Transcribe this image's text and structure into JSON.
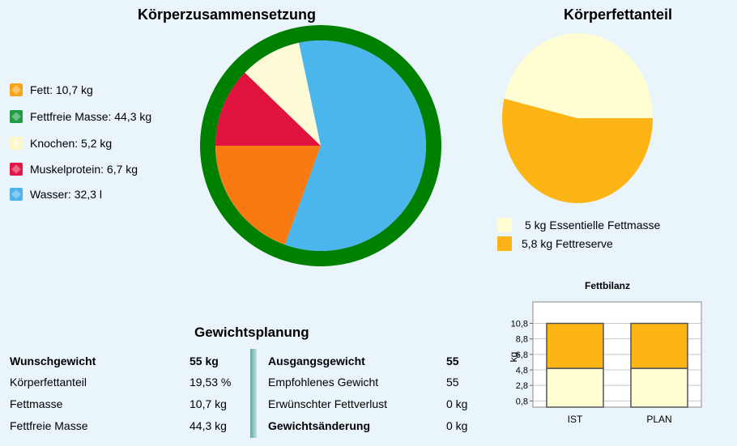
{
  "composition": {
    "title": "Körperzusammensetzung",
    "legend": [
      {
        "label": "Fett: 10,7 kg",
        "color": "#f7a61c"
      },
      {
        "label": "Fettfreie Masse: 44,3 kg",
        "color": "#1f9e46"
      },
      {
        "label": "Knochen: 5,2 kg",
        "color": "#fdf7c8"
      },
      {
        "label": "Muskelprotein: 6,7 kg",
        "color": "#e0184a"
      },
      {
        "label": "Wasser: 32,3 l",
        "color": "#4eb3e8"
      }
    ]
  },
  "bodyfat": {
    "title": "Körperfettanteil",
    "legend": [
      {
        "label": "5 kg Essentielle Fettmasse",
        "color": "#fefdd3"
      },
      {
        "label": "5,8 kg Fettreserve",
        "color": "#fcb316"
      }
    ]
  },
  "planning": {
    "title": "Gewichtsplanung",
    "left": [
      {
        "label": "Wunschgewicht",
        "value": "55 kg",
        "bold": true
      },
      {
        "label": "Körperfettanteil",
        "value": "19,53 %",
        "bold": false
      },
      {
        "label": "Fettmasse",
        "value": "10,7 kg",
        "bold": false
      },
      {
        "label": "Fettfreie Masse",
        "value": "44,3 kg",
        "bold": false
      }
    ],
    "right": [
      {
        "label": "Ausgangsgewicht",
        "value": "55",
        "bold": true
      },
      {
        "label": "Empfohlenes Gewicht",
        "value": "55",
        "bold": false
      },
      {
        "label": "Erwünschter Fettverlust",
        "value": "0 kg",
        "bold": false
      },
      {
        "label": "Gewichtsänderung",
        "value": "0 kg",
        "bold": true
      }
    ]
  },
  "chart_data": [
    {
      "type": "pie",
      "title": "Körperzusammensetzung",
      "inner": [
        {
          "name": "Fett",
          "value": 10.7,
          "color": "#fa7a12"
        },
        {
          "name": "Muskelprotein",
          "value": 6.7,
          "color": "#e0133f"
        },
        {
          "name": "Knochen",
          "value": 5.2,
          "color": "#fdfbd6"
        },
        {
          "name": "Wasser",
          "value": 32.3,
          "color": "#4ab6ec"
        }
      ],
      "outer": [
        {
          "name": "Fettfreie Masse",
          "value": 44.3,
          "color": "#008000"
        },
        {
          "name": "Fett",
          "value": 10.7,
          "color": "#008000"
        }
      ]
    },
    {
      "type": "pie",
      "title": "Körperfettanteil",
      "slices": [
        {
          "name": "Essentielle Fettmasse",
          "value": 5,
          "color": "#fffdd2"
        },
        {
          "name": "Fettreserve",
          "value": 5.8,
          "color": "#fdb415"
        }
      ]
    },
    {
      "type": "bar",
      "stacked": true,
      "title": "Fettbilanz",
      "ylabel": "kg",
      "categories": [
        "IST",
        "PLAN"
      ],
      "yticks": [
        "0,8",
        "2,8",
        "4,8",
        "6,8",
        "8,8",
        "10,8"
      ],
      "ylim": [
        0,
        12
      ],
      "series": [
        {
          "name": "Essentielle Fettmasse",
          "values": [
            5,
            5
          ],
          "color": "#fffdd2"
        },
        {
          "name": "Fettreserve",
          "values": [
            5.8,
            5.8
          ],
          "color": "#fdb415"
        }
      ]
    }
  ]
}
